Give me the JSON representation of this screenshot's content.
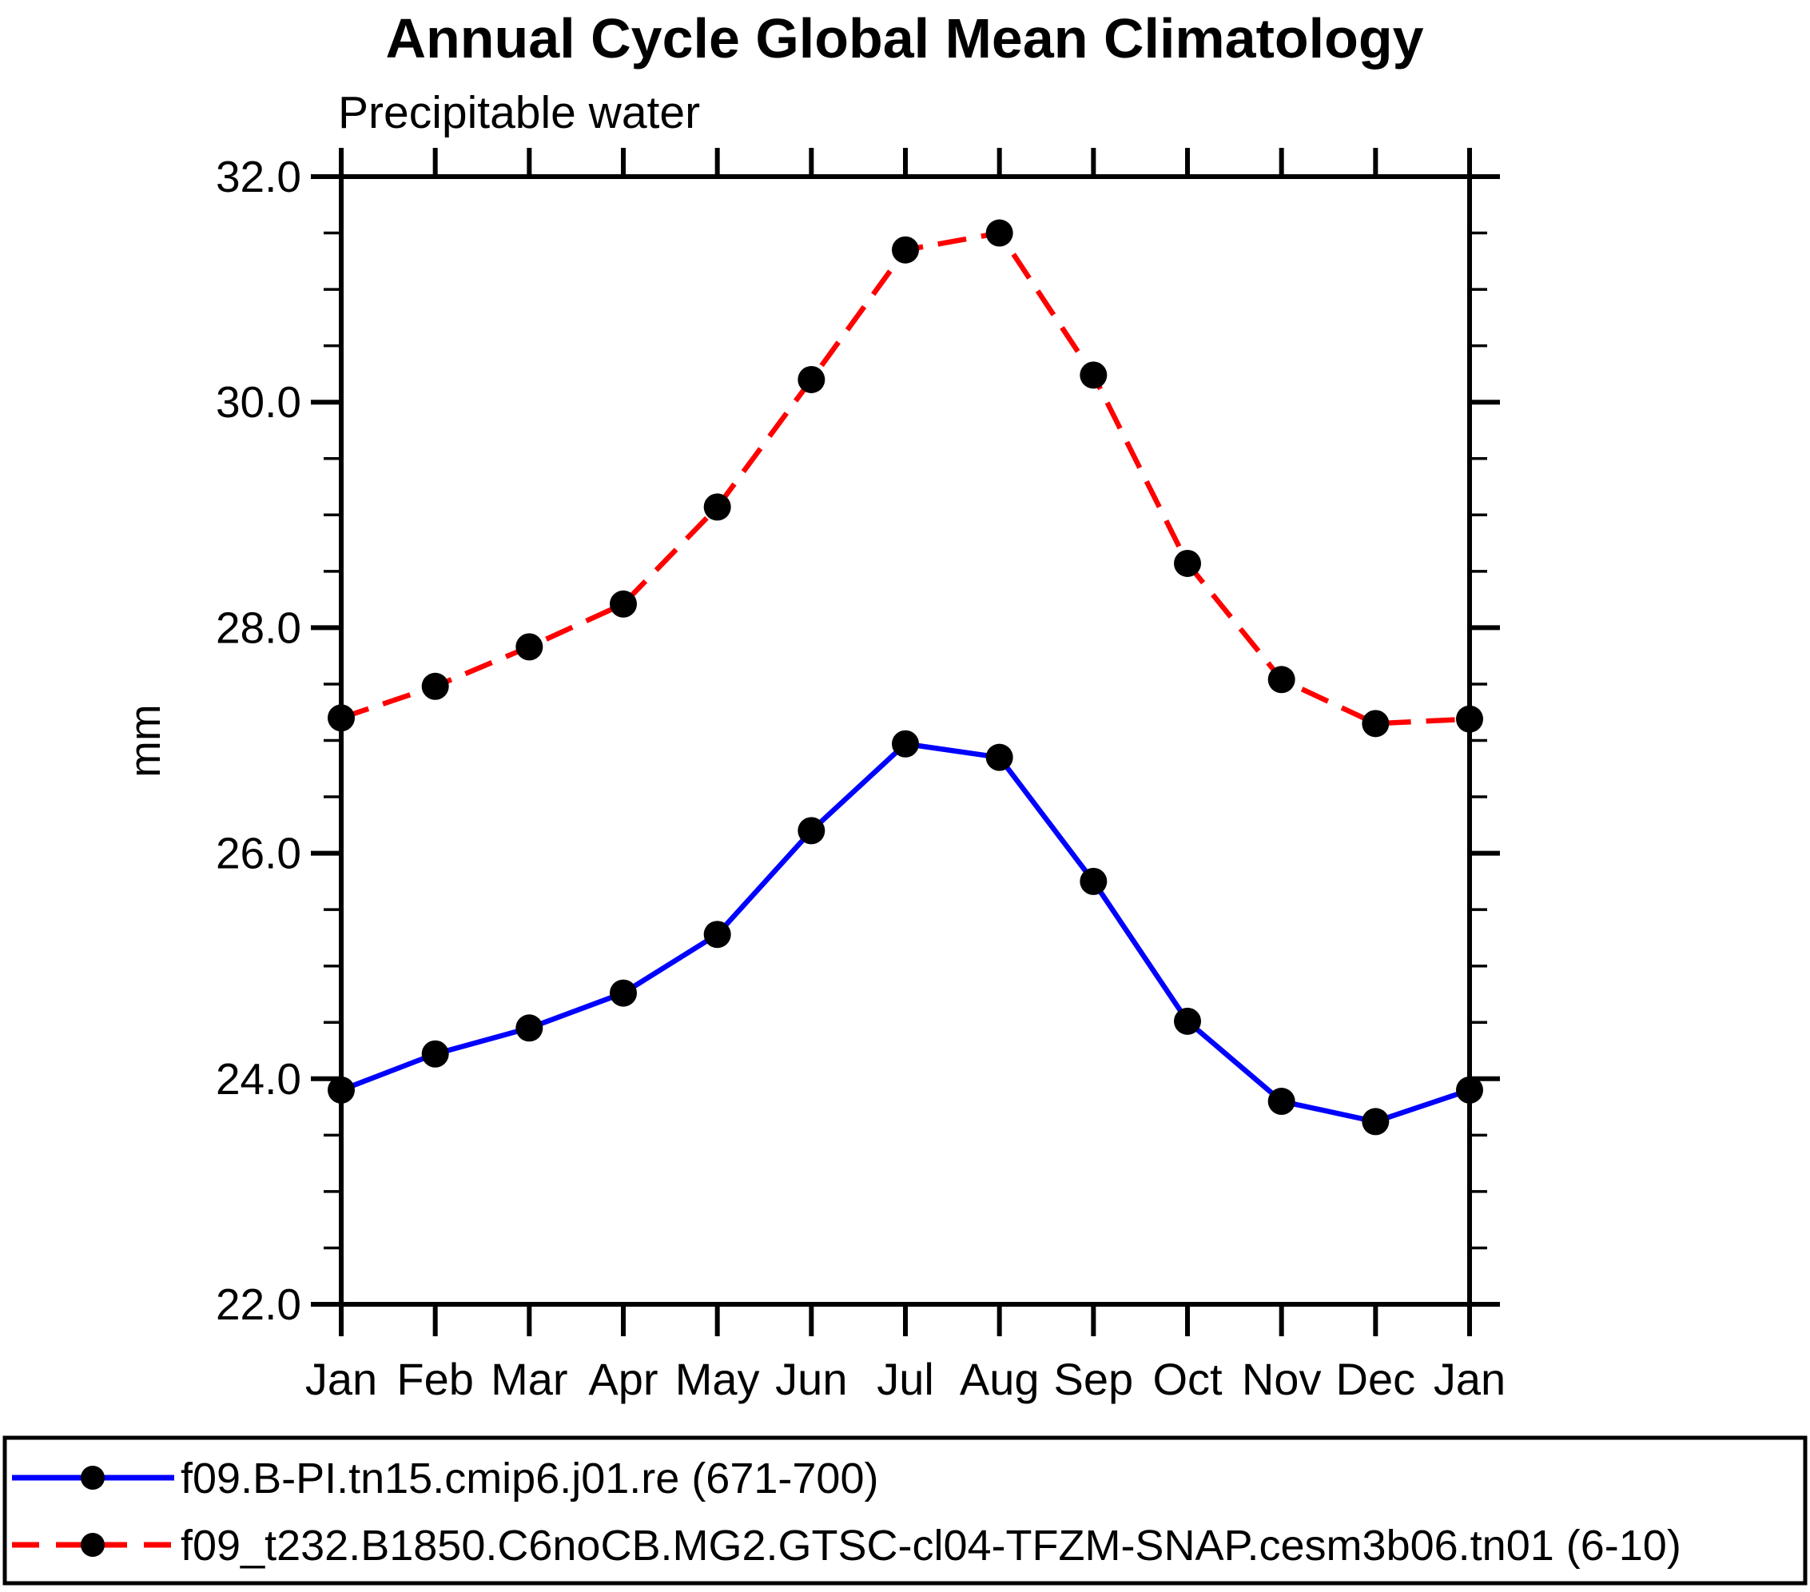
{
  "title": "Annual Cycle Global Mean Climatology",
  "subtitle": "Precipitable water",
  "chart_data": {
    "type": "line",
    "title": "Annual Cycle Global Mean Climatology",
    "subtitle": "Precipitable water",
    "xlabel": "",
    "ylabel": "mm",
    "categories": [
      "Jan",
      "Feb",
      "Mar",
      "Apr",
      "May",
      "Jun",
      "Jul",
      "Aug",
      "Sep",
      "Oct",
      "Nov",
      "Dec",
      "Jan"
    ],
    "ylim": [
      22.0,
      32.0
    ],
    "ytick_major_step": 2.0,
    "ytick_minor_step": 0.5,
    "ytick_labels": [
      "22.0",
      "24.0",
      "26.0",
      "28.0",
      "30.0",
      "32.0"
    ],
    "grid": false,
    "legend_position": "bottom",
    "frame_color": "#000000",
    "series": [
      {
        "name": "f09.B-PI.tn15.cmip6.j01.re (671-700)",
        "color": "#0000FF",
        "line_style": "solid",
        "marker": "filled-circle",
        "marker_color": "#000000",
        "values": [
          23.9,
          24.22,
          24.45,
          24.76,
          25.28,
          26.2,
          26.97,
          26.85,
          25.75,
          24.51,
          23.8,
          23.62,
          23.9
        ]
      },
      {
        "name": "f09_t232.B1850.C6noCB.MG2.GTSC-cl04-TFZM-SNAP.cesm3b06.tn01 (6-10)",
        "color": "#FF0000",
        "line_style": "dashed",
        "marker": "filled-circle",
        "marker_color": "#000000",
        "values": [
          27.2,
          27.48,
          27.83,
          28.21,
          29.07,
          30.2,
          31.35,
          31.5,
          30.24,
          28.57,
          27.54,
          27.15,
          27.19
        ]
      }
    ]
  }
}
